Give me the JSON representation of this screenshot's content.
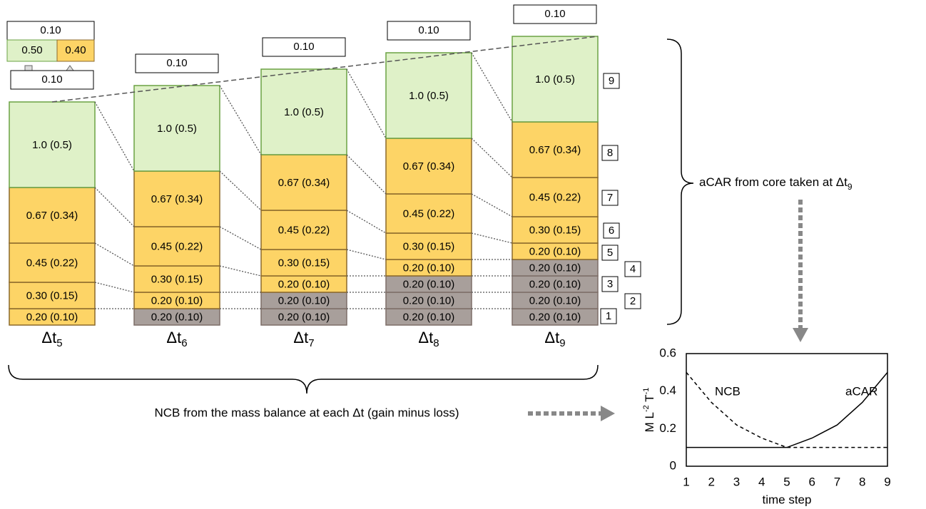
{
  "legend": {
    "top": "0.10",
    "gain": "0.50",
    "loss": "0.40",
    "gain_color": "#dff1c8",
    "loss_color": "#fdd466"
  },
  "columns": [
    {
      "top": "0.10",
      "label": "Δt",
      "sub": "5",
      "layers": [
        {
          "text": "0.20 (0.10)",
          "fill": "#fdd466",
          "stroke": "#8c6a2c"
        },
        {
          "text": "0.30 (0.15)",
          "fill": "#fdd466",
          "stroke": "#8c6a2c"
        },
        {
          "text": "0.45 (0.22)",
          "fill": "#fdd466",
          "stroke": "#8c6a2c"
        },
        {
          "text": "0.67 (0.34)",
          "fill": "#fdd466",
          "stroke": "#8c6a2c"
        },
        {
          "text": "1.0 (0.5)",
          "fill": "#dff1c8",
          "stroke": "#6ba244"
        }
      ]
    },
    {
      "top": "0.10",
      "label": "Δt",
      "sub": "6",
      "layers": [
        {
          "text": "0.20 (0.10)",
          "fill": "#a89f9b",
          "stroke": "#7d6e68"
        },
        {
          "text": "0.20 (0.10)",
          "fill": "#fdd466",
          "stroke": "#8c6a2c"
        },
        {
          "text": "0.30 (0.15)",
          "fill": "#fdd466",
          "stroke": "#8c6a2c"
        },
        {
          "text": "0.45 (0.22)",
          "fill": "#fdd466",
          "stroke": "#8c6a2c"
        },
        {
          "text": "0.67 (0.34)",
          "fill": "#fdd466",
          "stroke": "#8c6a2c"
        },
        {
          "text": "1.0 (0.5)",
          "fill": "#dff1c8",
          "stroke": "#6ba244"
        }
      ]
    },
    {
      "top": "0.10",
      "label": "Δt",
      "sub": "7",
      "layers": [
        {
          "text": "0.20 (0.10)",
          "fill": "#a89f9b",
          "stroke": "#7d6e68"
        },
        {
          "text": "0.20 (0.10)",
          "fill": "#a89f9b",
          "stroke": "#7d6e68"
        },
        {
          "text": "0.20 (0.10)",
          "fill": "#fdd466",
          "stroke": "#8c6a2c"
        },
        {
          "text": "0.30 (0.15)",
          "fill": "#fdd466",
          "stroke": "#8c6a2c"
        },
        {
          "text": "0.45 (0.22)",
          "fill": "#fdd466",
          "stroke": "#8c6a2c"
        },
        {
          "text": "0.67 (0.34)",
          "fill": "#fdd466",
          "stroke": "#8c6a2c"
        },
        {
          "text": "1.0 (0.5)",
          "fill": "#dff1c8",
          "stroke": "#6ba244"
        }
      ]
    },
    {
      "top": "0.10",
      "label": "Δt",
      "sub": "8",
      "layers": [
        {
          "text": "0.20 (0.10)",
          "fill": "#a89f9b",
          "stroke": "#7d6e68"
        },
        {
          "text": "0.20 (0.10)",
          "fill": "#a89f9b",
          "stroke": "#7d6e68"
        },
        {
          "text": "0.20 (0.10)",
          "fill": "#a89f9b",
          "stroke": "#7d6e68"
        },
        {
          "text": "0.20 (0.10)",
          "fill": "#fdd466",
          "stroke": "#8c6a2c"
        },
        {
          "text": "0.30 (0.15)",
          "fill": "#fdd466",
          "stroke": "#8c6a2c"
        },
        {
          "text": "0.45 (0.22)",
          "fill": "#fdd466",
          "stroke": "#8c6a2c"
        },
        {
          "text": "0.67 (0.34)",
          "fill": "#fdd466",
          "stroke": "#8c6a2c"
        },
        {
          "text": "1.0 (0.5)",
          "fill": "#dff1c8",
          "stroke": "#6ba244"
        }
      ]
    },
    {
      "top": "0.10",
      "label": "Δt",
      "sub": "9",
      "layers": [
        {
          "text": "0.20 (0.10)",
          "fill": "#a89f9b",
          "stroke": "#7d6e68"
        },
        {
          "text": "0.20 (0.10)",
          "fill": "#a89f9b",
          "stroke": "#7d6e68"
        },
        {
          "text": "0.20 (0.10)",
          "fill": "#a89f9b",
          "stroke": "#7d6e68"
        },
        {
          "text": "0.20 (0.10)",
          "fill": "#a89f9b",
          "stroke": "#7d6e68"
        },
        {
          "text": "0.20 (0.10)",
          "fill": "#fdd466",
          "stroke": "#8c6a2c"
        },
        {
          "text": "0.30 (0.15)",
          "fill": "#fdd466",
          "stroke": "#8c6a2c"
        },
        {
          "text": "0.45 (0.22)",
          "fill": "#fdd466",
          "stroke": "#8c6a2c"
        },
        {
          "text": "0.67 (0.34)",
          "fill": "#fdd466",
          "stroke": "#8c6a2c"
        },
        {
          "text": "1.0 (0.5)",
          "fill": "#dff1c8",
          "stroke": "#6ba244"
        }
      ]
    }
  ],
  "layer_numbers": [
    "1",
    "2",
    "3",
    "4",
    "5",
    "6",
    "7",
    "8",
    "9"
  ],
  "core_label": {
    "text": "aCAR from core taken at Δt",
    "sub": "9"
  },
  "balance_label": "NCB from the mass balance at each Δt (gain minus loss)",
  "chart_data": {
    "type": "line",
    "x": [
      1,
      2,
      3,
      4,
      5,
      6,
      7,
      8,
      9
    ],
    "series": [
      {
        "name": "NCB",
        "color": "#000000",
        "dashed": true,
        "values": [
          0.5,
          0.34,
          0.22,
          0.15,
          0.1,
          0.1,
          0.1,
          0.1,
          0.1
        ]
      },
      {
        "name": "aCAR",
        "color": "#000000",
        "dashed": false,
        "values": [
          0.1,
          0.1,
          0.1,
          0.1,
          0.1,
          0.15,
          0.22,
          0.34,
          0.5
        ]
      }
    ],
    "xlim": [
      1,
      9
    ],
    "ylim": [
      0,
      0.6
    ],
    "xticks": [
      1,
      2,
      3,
      4,
      5,
      6,
      7,
      8,
      9
    ],
    "yticks": [
      0,
      0.2,
      0.4,
      0.6
    ],
    "xlabel": "time step",
    "ylabel": [
      "M L",
      "-2",
      " T",
      "-1"
    ]
  }
}
